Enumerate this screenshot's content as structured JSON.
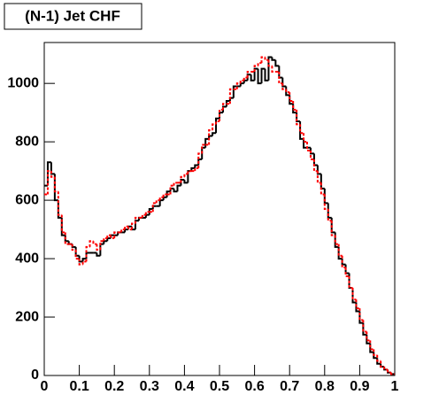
{
  "chart_data": {
    "type": "histogram",
    "title": "(N-1) Jet CHF",
    "bins": [
      0,
      0.01,
      0.02,
      0.03,
      0.04,
      0.05,
      0.06,
      0.07,
      0.08,
      0.09,
      0.1,
      0.11,
      0.12,
      0.13,
      0.14,
      0.15,
      0.16,
      0.17,
      0.18,
      0.19,
      0.2,
      0.21,
      0.22,
      0.23,
      0.24,
      0.25,
      0.26,
      0.27,
      0.28,
      0.29,
      0.3,
      0.31,
      0.32,
      0.33,
      0.34,
      0.35,
      0.36,
      0.37,
      0.38,
      0.39,
      0.4,
      0.41,
      0.42,
      0.43,
      0.44,
      0.45,
      0.46,
      0.47,
      0.48,
      0.49,
      0.5,
      0.51,
      0.52,
      0.53,
      0.54,
      0.55,
      0.56,
      0.57,
      0.58,
      0.59,
      0.6,
      0.61,
      0.62,
      0.63,
      0.64,
      0.65,
      0.66,
      0.67,
      0.68,
      0.69,
      0.7,
      0.71,
      0.72,
      0.73,
      0.74,
      0.75,
      0.76,
      0.77,
      0.78,
      0.79,
      0.8,
      0.81,
      0.82,
      0.83,
      0.84,
      0.85,
      0.86,
      0.87,
      0.88,
      0.89,
      0.9,
      0.91,
      0.92,
      0.93,
      0.94,
      0.95,
      0.96,
      0.97,
      0.98,
      0.99,
      1
    ],
    "series": [
      {
        "color": "#000000",
        "dash": false,
        "values": [
          650,
          730,
          690,
          600,
          540,
          480,
          460,
          450,
          440,
          410,
          390,
          400,
          420,
          420,
          420,
          410,
          450,
          460,
          470,
          480,
          480,
          490,
          490,
          500,
          510,
          500,
          530,
          540,
          540,
          550,
          570,
          580,
          580,
          600,
          610,
          630,
          640,
          630,
          650,
          670,
          660,
          700,
          710,
          720,
          740,
          780,
          810,
          820,
          830,
          880,
          900,
          920,
          940,
          950,
          990,
          990,
          1000,
          1010,
          1030,
          1010,
          1050,
          1000,
          1050,
          1010,
          1090,
          1080,
          1060,
          1020,
          990,
          960,
          930,
          900,
          870,
          810,
          780,
          780,
          760,
          720,
          690,
          640,
          590,
          540,
          490,
          440,
          400,
          380,
          350,
          300,
          250,
          220,
          180,
          140,
          110,
          80,
          60,
          40,
          30,
          20,
          10,
          5
        ]
      },
      {
        "color": "#ff0000",
        "dash": true,
        "values": [
          620,
          700,
          680,
          630,
          550,
          490,
          450,
          450,
          430,
          400,
          380,
          390,
          440,
          460,
          450,
          430,
          460,
          470,
          480,
          470,
          490,
          490,
          500,
          510,
          500,
          520,
          540,
          540,
          550,
          560,
          560,
          590,
          600,
          610,
          620,
          620,
          650,
          660,
          660,
          680,
          690,
          700,
          700,
          710,
          760,
          790,
          790,
          840,
          860,
          870,
          910,
          930,
          930,
          980,
          980,
          1000,
          1010,
          1020,
          1040,
          1040,
          1060,
          1070,
          1090,
          1080,
          1060,
          1040,
          1040,
          1000,
          980,
          970,
          940,
          910,
          860,
          830,
          800,
          770,
          740,
          700,
          660,
          620,
          570,
          530,
          480,
          450,
          410,
          370,
          340,
          300,
          260,
          230,
          190,
          150,
          120,
          90,
          70,
          50,
          30,
          20,
          10,
          5
        ]
      }
    ],
    "xlim": [
      0,
      1
    ],
    "xticks": [
      0,
      0.1,
      0.2,
      0.3,
      0.4,
      0.5,
      0.6,
      0.7,
      0.8,
      0.9,
      1
    ],
    "ylim": [
      0,
      1140
    ],
    "yticks": [
      0,
      200,
      400,
      600,
      800,
      1000
    ]
  }
}
